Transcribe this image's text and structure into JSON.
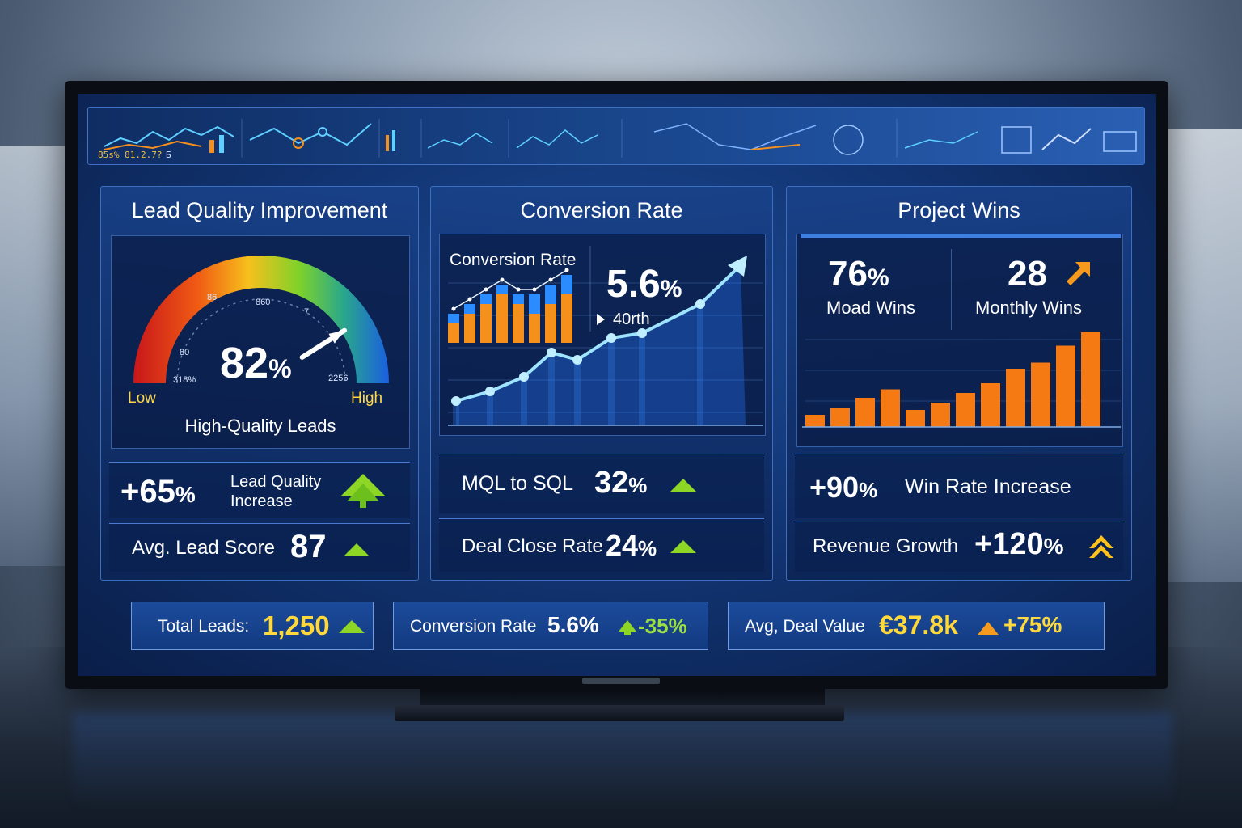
{
  "top_strip": {
    "left_label": "85s% 81.2.7?",
    "seg_label_b": "Б",
    "colors": {
      "orange": "#f5901c",
      "cyan": "#5ed0ff",
      "yellow": "#f0c040"
    }
  },
  "lead_quality": {
    "title": "Lead Quality Improvement",
    "gauge_value": "82",
    "gauge_unit": "%",
    "gauge_fraction": 0.82,
    "low_label": "Low",
    "high_label": "High",
    "caption": "High-Quality Leads",
    "tick_labels": [
      "86",
      "860",
      "7",
      "80",
      "318%",
      "2256"
    ],
    "increase_value": "+65",
    "increase_unit": "%",
    "increase_label_line1": "Lead Quality",
    "increase_label_line2": "Increase",
    "avg_label": "Avg. Lead Score",
    "avg_value": "87"
  },
  "conversion": {
    "title": "Conversion Rate",
    "chart_label": "Conversion Rate",
    "big_value": "5.6",
    "big_unit": "%",
    "rank_label": "40rth",
    "mql_label": "MQL to SQL",
    "mql_value": "32",
    "mql_unit": "%",
    "close_label": "Deal Close Rate",
    "close_value": "24",
    "close_unit": "%"
  },
  "project": {
    "title": "Project Wins",
    "stat1_value": "76",
    "stat1_unit": "%",
    "stat1_label": "Moad Wins",
    "stat2_value": "28",
    "stat2_label": "Monthly Wins",
    "win_value": "+90",
    "win_unit": "%",
    "win_label": "Win Rate Increase",
    "rev_label": "Revenue Growth",
    "rev_value": "+120",
    "rev_unit": "%"
  },
  "bottom": {
    "leads_label": "Total Leads:",
    "leads_value": "1,250",
    "conv_label": "Conversion Rate",
    "conv_value": "5.6%",
    "conv_change": "-35%",
    "deal_label": "Avg, Deal Value",
    "deal_value": "€37.8k",
    "deal_change": "+75%"
  },
  "chart_data": [
    {
      "type": "bar",
      "series": [
        {
          "values": [
            2,
            3,
            4,
            5,
            4,
            3,
            4,
            5
          ]
        },
        {
          "values": [
            3,
            4,
            5,
            6,
            5,
            5,
            6,
            7
          ]
        }
      ],
      "line": [
        3,
        4,
        5,
        6,
        5,
        5,
        6,
        7
      ]
    },
    {
      "type": "line",
      "values": [
        1.0,
        1.4,
        2.0,
        3.0,
        2.7,
        3.6,
        3.8,
        5.0,
        6.6
      ]
    },
    {
      "type": "bar",
      "values": [
        1,
        1.6,
        2.4,
        3.1,
        1.4,
        2,
        2.8,
        3.6,
        4.8,
        5.3,
        6.7,
        7.8
      ]
    }
  ]
}
